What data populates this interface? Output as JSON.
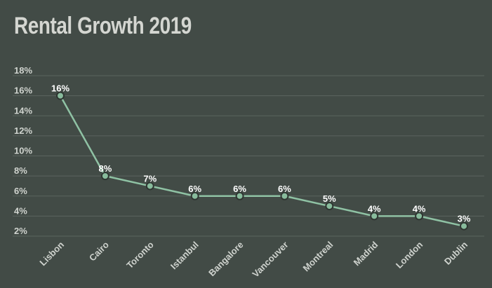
{
  "chart_data": {
    "type": "line",
    "title": "Rental Growth 2019",
    "xlabel": "",
    "ylabel": "",
    "categories": [
      "Lisbon",
      "Cairo",
      "Toronto",
      "Istanbul",
      "Bangalore",
      "Vancouver",
      "Montreal",
      "Madrid",
      "London",
      "Dublin"
    ],
    "series": [
      {
        "values": [
          16,
          8,
          7,
          6,
          6,
          6,
          5,
          4,
          4,
          3
        ]
      }
    ],
    "data_labels": [
      "16%",
      "8%",
      "7%",
      "6%",
      "6%",
      "6%",
      "5%",
      "4%",
      "4%",
      "3%"
    ],
    "ylim": [
      2,
      18
    ],
    "yticks": [
      2,
      4,
      6,
      8,
      10,
      12,
      14,
      16,
      18
    ],
    "ytick_labels": [
      "2%",
      "4%",
      "6%",
      "8%",
      "10%",
      "12%",
      "14%",
      "16%",
      "18%"
    ],
    "grid": true,
    "legend": "none"
  },
  "colors": {
    "background": "#424b46",
    "title": "#d4d6d1",
    "grid": "#5b645f",
    "tick_text": "#cfd3ce",
    "line": "#8fc2a4",
    "marker_fill": "#88bb9c",
    "marker_stroke": "#2e3531",
    "label_text": "#ffffff"
  }
}
